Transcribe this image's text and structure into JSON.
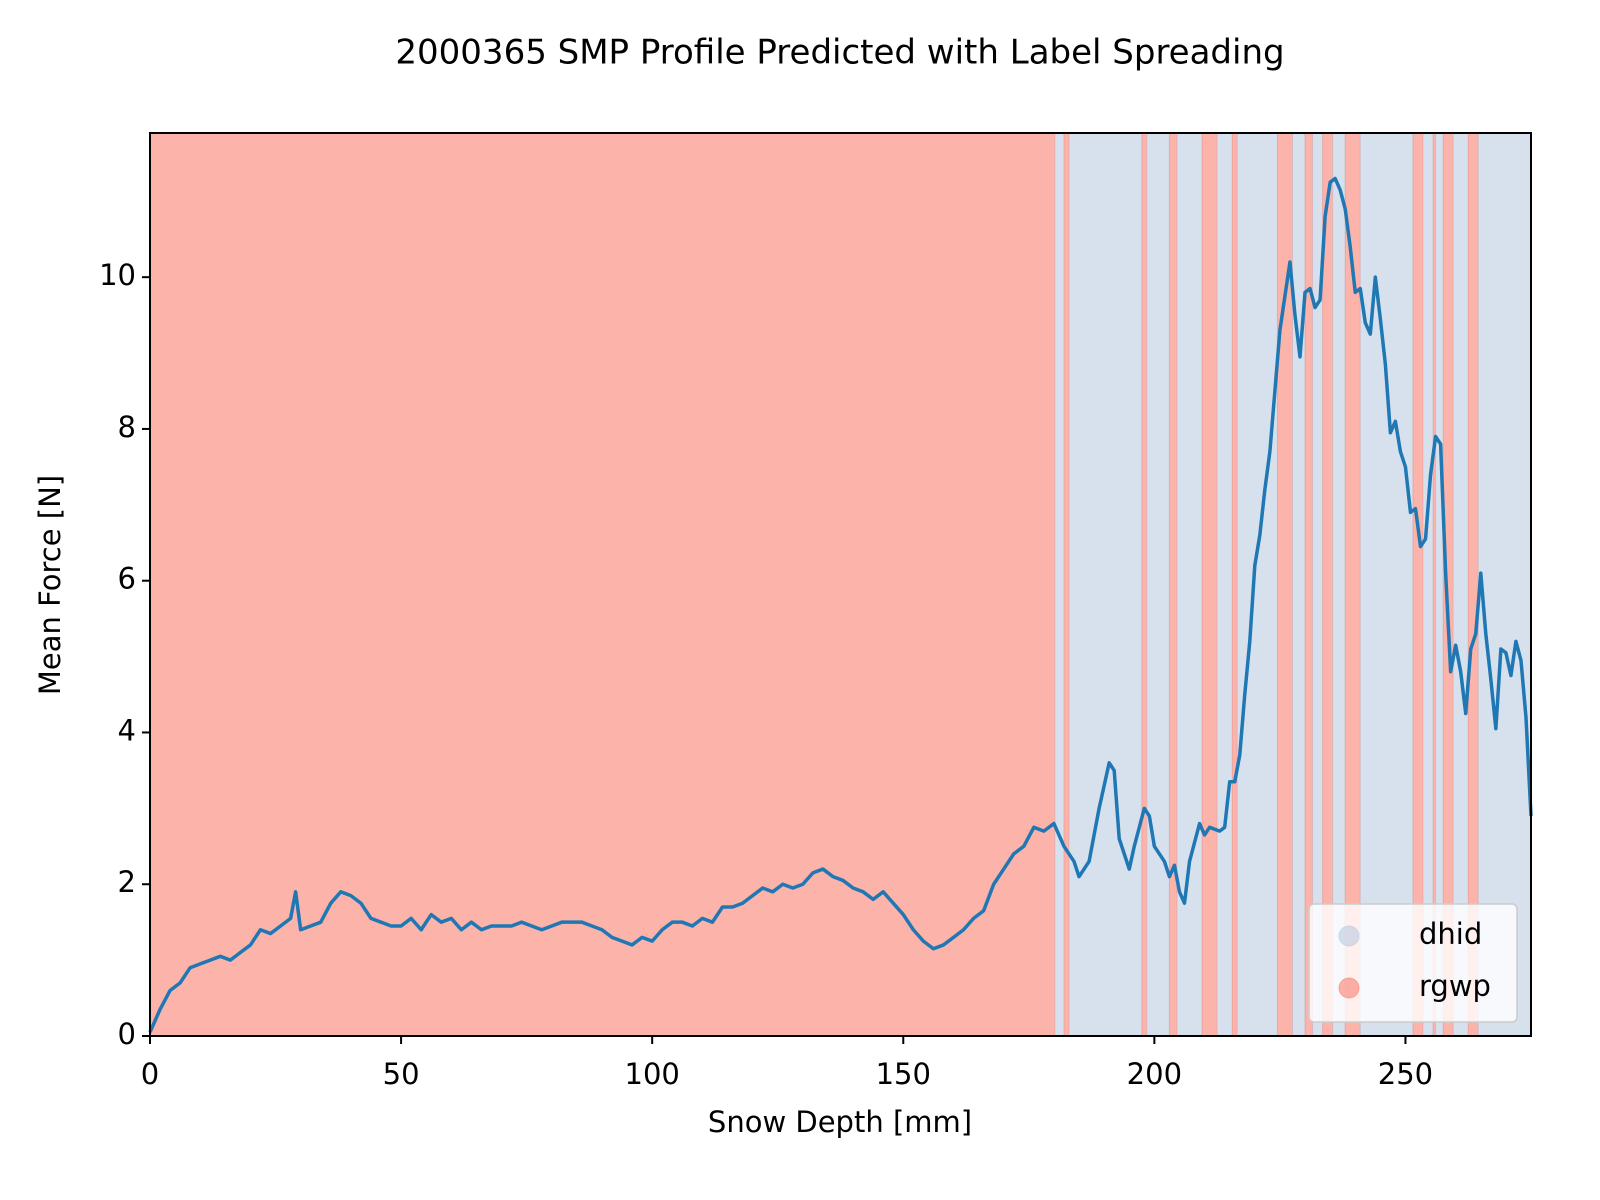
{
  "chart_data": {
    "type": "line",
    "title": "2000365 SMP Profile Predicted with Label Spreading",
    "x_label": "Snow Depth [mm]",
    "y_label": "Mean Force [N]",
    "xlim": [
      0,
      275
    ],
    "ylim": [
      0,
      11.9
    ],
    "xticks": [
      0,
      50,
      100,
      150,
      200,
      250
    ],
    "yticks": [
      0,
      2,
      4,
      6,
      8,
      10
    ],
    "legend_position": "lower right",
    "legend": [
      {
        "name": "dhid",
        "color": "#b0c4de"
      },
      {
        "name": "rgwp",
        "color": "#fa8072"
      }
    ],
    "regions": [
      {
        "start": 0,
        "end": 180.2,
        "label": "rgwp"
      },
      {
        "start": 180.2,
        "end": 182,
        "label": "dhid"
      },
      {
        "start": 182,
        "end": 183,
        "label": "rgwp"
      },
      {
        "start": 183,
        "end": 197.5,
        "label": "dhid"
      },
      {
        "start": 197.5,
        "end": 198.5,
        "label": "rgwp"
      },
      {
        "start": 198.5,
        "end": 203,
        "label": "dhid"
      },
      {
        "start": 203,
        "end": 204.5,
        "label": "rgwp"
      },
      {
        "start": 204.5,
        "end": 209.5,
        "label": "dhid"
      },
      {
        "start": 209.5,
        "end": 212.5,
        "label": "rgwp"
      },
      {
        "start": 212.5,
        "end": 215.5,
        "label": "dhid"
      },
      {
        "start": 215.5,
        "end": 216.5,
        "label": "rgwp"
      },
      {
        "start": 216.5,
        "end": 224.5,
        "label": "dhid"
      },
      {
        "start": 224.5,
        "end": 227.5,
        "label": "rgwp"
      },
      {
        "start": 227.5,
        "end": 230,
        "label": "dhid"
      },
      {
        "start": 230,
        "end": 231.5,
        "label": "rgwp"
      },
      {
        "start": 231.5,
        "end": 233.5,
        "label": "dhid"
      },
      {
        "start": 233.5,
        "end": 235.5,
        "label": "rgwp"
      },
      {
        "start": 235.5,
        "end": 238,
        "label": "dhid"
      },
      {
        "start": 238,
        "end": 241,
        "label": "rgwp"
      },
      {
        "start": 241,
        "end": 251.5,
        "label": "dhid"
      },
      {
        "start": 251.5,
        "end": 253.5,
        "label": "rgwp"
      },
      {
        "start": 253.5,
        "end": 255.5,
        "label": "dhid"
      },
      {
        "start": 255.5,
        "end": 256,
        "label": "rgwp"
      },
      {
        "start": 256,
        "end": 257.5,
        "label": "dhid"
      },
      {
        "start": 257.5,
        "end": 259.5,
        "label": "rgwp"
      },
      {
        "start": 259.5,
        "end": 262.5,
        "label": "dhid"
      },
      {
        "start": 262.5,
        "end": 264.5,
        "label": "rgwp"
      },
      {
        "start": 264.5,
        "end": 275,
        "label": "dhid"
      }
    ],
    "series": [
      {
        "color": "#1f77b4",
        "x": [
          0,
          2,
          4,
          6,
          8,
          10,
          12,
          14,
          16,
          18,
          20,
          22,
          24,
          26,
          28,
          29,
          30,
          32,
          34,
          36,
          38,
          40,
          42,
          44,
          46,
          48,
          50,
          52,
          54,
          56,
          58,
          60,
          62,
          64,
          66,
          68,
          70,
          72,
          74,
          76,
          78,
          80,
          82,
          84,
          86,
          88,
          90,
          92,
          94,
          96,
          98,
          100,
          102,
          104,
          106,
          108,
          110,
          112,
          114,
          116,
          118,
          120,
          122,
          124,
          126,
          128,
          130,
          132,
          134,
          136,
          138,
          140,
          142,
          144,
          146,
          148,
          150,
          152,
          154,
          156,
          158,
          160,
          162,
          164,
          166,
          168,
          170,
          172,
          174,
          176,
          178,
          180,
          182,
          184,
          185,
          187,
          189,
          191,
          192,
          193,
          195,
          196,
          198,
          199,
          200,
          202,
          203,
          204,
          205,
          206,
          207,
          209,
          210,
          211,
          213,
          214,
          215,
          216,
          217,
          218,
          219,
          220,
          221,
          222,
          223,
          224,
          225,
          227,
          228,
          229,
          230,
          231,
          232,
          233,
          234,
          235,
          236,
          237,
          238,
          239,
          240,
          241,
          242,
          243,
          244,
          245,
          246,
          247,
          248,
          249,
          250,
          251,
          252,
          253,
          254,
          255,
          256,
          257,
          258,
          259,
          260,
          261,
          262,
          263,
          264,
          265,
          266,
          267,
          268,
          269,
          270,
          271,
          272,
          273,
          274,
          275
        ],
        "values": [
          0.05,
          0.35,
          0.6,
          0.7,
          0.9,
          0.95,
          1.0,
          1.05,
          1.0,
          1.1,
          1.2,
          1.4,
          1.35,
          1.45,
          1.55,
          1.9,
          1.4,
          1.45,
          1.5,
          1.75,
          1.9,
          1.85,
          1.75,
          1.55,
          1.5,
          1.45,
          1.45,
          1.55,
          1.4,
          1.6,
          1.5,
          1.55,
          1.4,
          1.5,
          1.4,
          1.45,
          1.45,
          1.45,
          1.5,
          1.45,
          1.4,
          1.45,
          1.5,
          1.5,
          1.5,
          1.45,
          1.4,
          1.3,
          1.25,
          1.2,
          1.3,
          1.25,
          1.4,
          1.5,
          1.5,
          1.45,
          1.55,
          1.5,
          1.7,
          1.7,
          1.75,
          1.85,
          1.95,
          1.9,
          2.0,
          1.95,
          2.0,
          2.15,
          2.2,
          2.1,
          2.05,
          1.95,
          1.9,
          1.8,
          1.9,
          1.75,
          1.6,
          1.4,
          1.25,
          1.15,
          1.2,
          1.3,
          1.4,
          1.55,
          1.65,
          2.0,
          2.2,
          2.4,
          2.5,
          2.75,
          2.7,
          2.8,
          2.5,
          2.3,
          2.1,
          2.3,
          3.0,
          3.6,
          3.5,
          2.6,
          2.2,
          2.5,
          3.0,
          2.9,
          2.5,
          2.3,
          2.1,
          2.25,
          1.9,
          1.75,
          2.3,
          2.8,
          2.65,
          2.75,
          2.7,
          2.75,
          3.35,
          3.35,
          3.7,
          4.5,
          5.2,
          6.2,
          6.6,
          7.2,
          7.7,
          8.5,
          9.3,
          10.2,
          9.5,
          8.95,
          9.8,
          9.85,
          9.6,
          9.7,
          10.8,
          11.25,
          11.3,
          11.15,
          10.9,
          10.4,
          9.8,
          9.85,
          9.4,
          9.25,
          10.0,
          9.45,
          8.85,
          7.95,
          8.1,
          7.7,
          7.5,
          6.9,
          6.95,
          6.45,
          6.55,
          7.4,
          7.9,
          7.8,
          6.1,
          4.8,
          5.15,
          4.8,
          4.25,
          5.1,
          5.3,
          6.1,
          5.3,
          4.7,
          4.05,
          5.1,
          5.05,
          4.75,
          5.2,
          4.95,
          4.2,
          2.9
        ]
      }
    ]
  }
}
